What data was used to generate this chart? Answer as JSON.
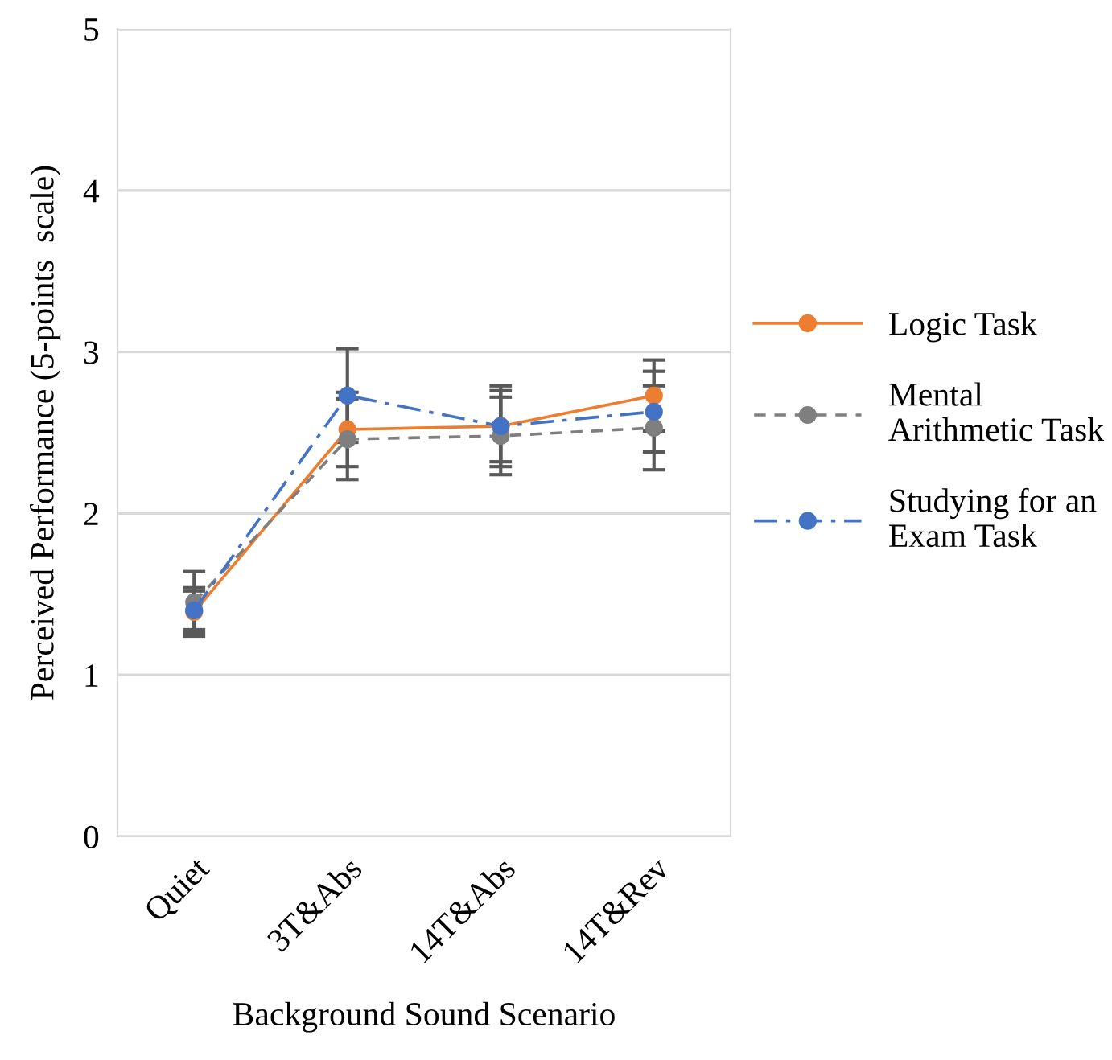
{
  "chart_data": {
    "type": "line",
    "xlabel": "Background Sound Scenario",
    "ylabel": "Perceived Performance (5-points  scale)",
    "categories": [
      "Quiet",
      "3T&Abs",
      "14T&Abs",
      "14T&Rev"
    ],
    "series": [
      {
        "name": "Logic Task",
        "color": "#ed7d31",
        "line_style": "solid",
        "values": [
          1.39,
          2.52,
          2.54,
          2.73
        ],
        "errors": [
          0.15,
          0.23,
          0.22,
          0.22
        ]
      },
      {
        "name": "Mental Arithmetic Task",
        "color": "#7f7f7f",
        "line_style": "dashed",
        "values": [
          1.45,
          2.46,
          2.48,
          2.53
        ],
        "errors": [
          0.19,
          0.25,
          0.24,
          0.26
        ]
      },
      {
        "name": "Studying for an Exam Task",
        "color": "#4472c4",
        "line_style": "dashdot",
        "values": [
          1.4,
          2.73,
          2.54,
          2.63
        ],
        "errors": [
          0.12,
          0.29,
          0.25,
          0.25
        ]
      }
    ],
    "ylim": [
      0,
      5
    ],
    "yticks": [
      0,
      1,
      2,
      3,
      4,
      5
    ],
    "grid": "y",
    "legend": "right",
    "marker": "circle"
  }
}
